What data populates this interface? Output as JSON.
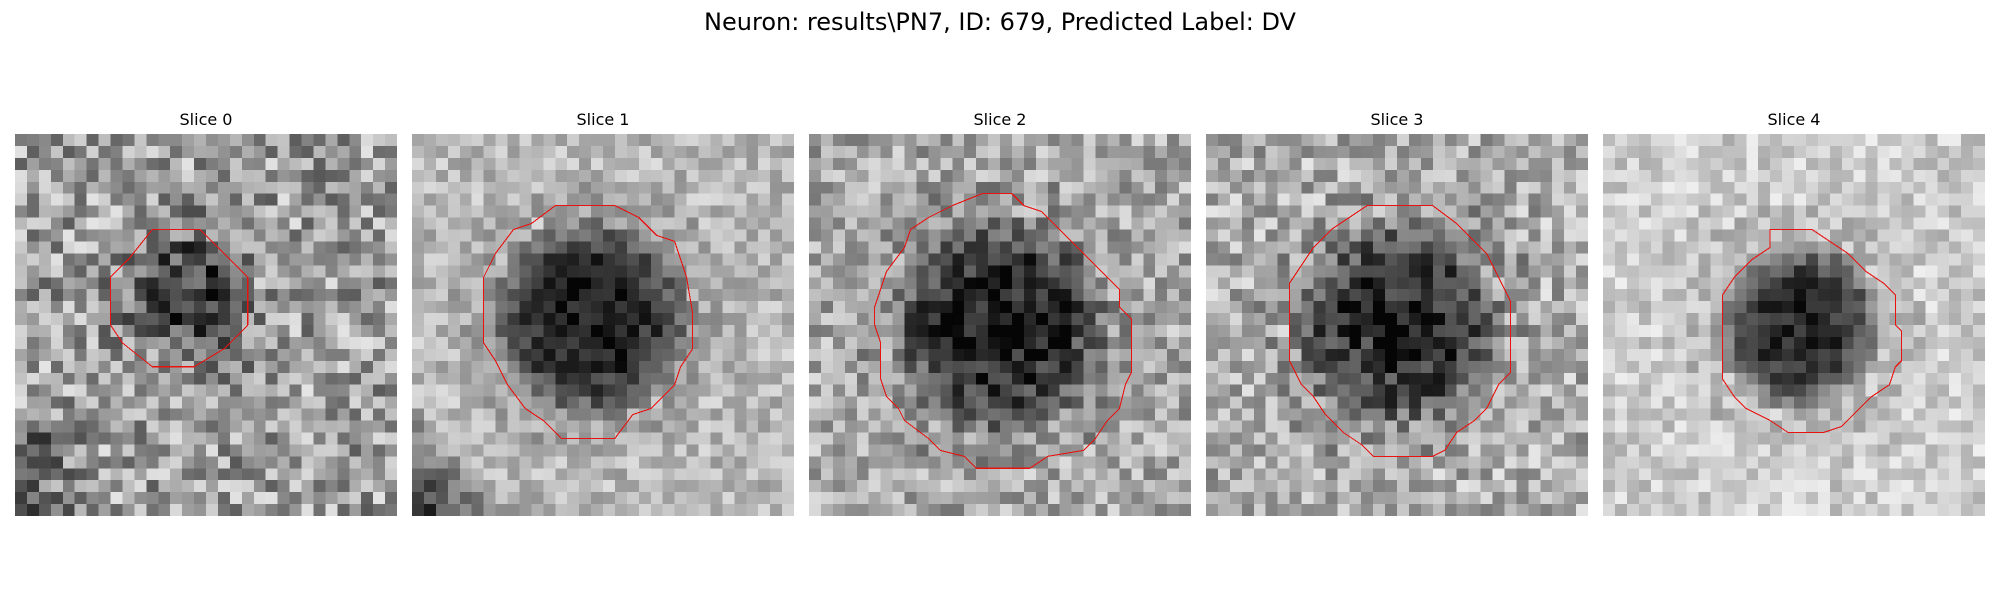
{
  "figure": {
    "title": "Neuron: results\\PN7, ID: 679, Predicted Label: DV"
  },
  "colors": {
    "contour": "#e8130f",
    "background": "#ffffff"
  },
  "panels": [
    {
      "label": "Slice 0"
    },
    {
      "label": "Slice 1"
    },
    {
      "label": "Slice 2"
    },
    {
      "label": "Slice 3"
    },
    {
      "label": "Slice 4"
    }
  ]
}
